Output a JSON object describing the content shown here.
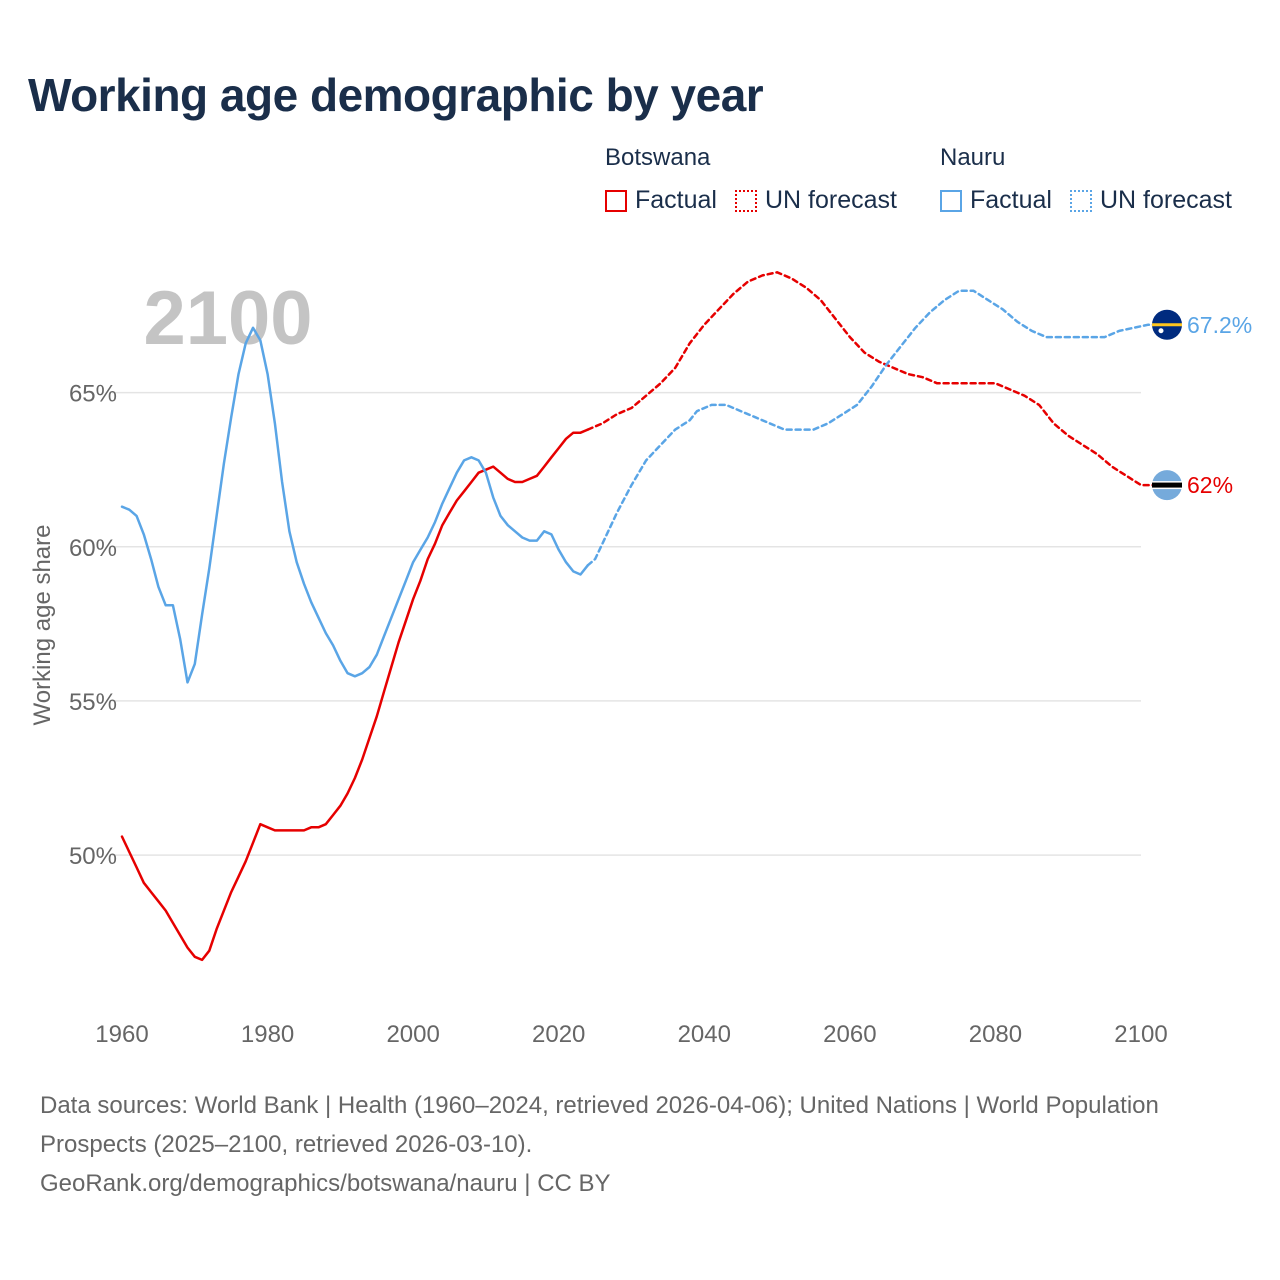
{
  "title": "Working age demographic by year",
  "legend": {
    "groups": [
      {
        "name": "Botswana",
        "factual_label": "Factual",
        "forecast_label": "UN forecast",
        "color": "#e60000"
      },
      {
        "name": "Nauru",
        "factual_label": "Factual",
        "forecast_label": "UN forecast",
        "color": "#5aa5e6"
      }
    ]
  },
  "footer": {
    "sources": "Data sources: World Bank | Health (1960–2024, retrieved 2026-04-06); United Nations | World Population Prospects (2025–2100, retrieved 2026-03-10).",
    "credit": "GeoRank.org/demographics/botswana/nauru | CC BY"
  },
  "chart_data": {
    "type": "line",
    "title": "Working age demographic by year",
    "year_watermark": "2100",
    "ylabel": "Working age share",
    "xlabel": "",
    "xlim": [
      1960,
      2100
    ],
    "ylim": [
      45.3,
      69.3
    ],
    "x_ticks": [
      1960,
      1980,
      2000,
      2020,
      2040,
      2060,
      2080,
      2100
    ],
    "y_ticks": [
      50,
      55,
      60,
      65
    ],
    "y_tick_labels": [
      "50%",
      "55%",
      "60%",
      "65%"
    ],
    "grid": true,
    "series": [
      {
        "name": "Botswana",
        "segment": "Factual",
        "color": "#e60000",
        "style": "solid",
        "points": [
          [
            1960,
            50.6
          ],
          [
            1961,
            50.1
          ],
          [
            1962,
            49.6
          ],
          [
            1963,
            49.1
          ],
          [
            1964,
            48.8
          ],
          [
            1965,
            48.5
          ],
          [
            1966,
            48.2
          ],
          [
            1967,
            47.8
          ],
          [
            1968,
            47.4
          ],
          [
            1969,
            47.0
          ],
          [
            1970,
            46.7
          ],
          [
            1971,
            46.6
          ],
          [
            1972,
            46.9
          ],
          [
            1973,
            47.6
          ],
          [
            1974,
            48.2
          ],
          [
            1975,
            48.8
          ],
          [
            1976,
            49.3
          ],
          [
            1977,
            49.8
          ],
          [
            1978,
            50.4
          ],
          [
            1979,
            51.0
          ],
          [
            1980,
            50.9
          ],
          [
            1981,
            50.8
          ],
          [
            1982,
            50.8
          ],
          [
            1983,
            50.8
          ],
          [
            1984,
            50.8
          ],
          [
            1985,
            50.8
          ],
          [
            1986,
            50.9
          ],
          [
            1987,
            50.9
          ],
          [
            1988,
            51.0
          ],
          [
            1989,
            51.3
          ],
          [
            1990,
            51.6
          ],
          [
            1991,
            52.0
          ],
          [
            1992,
            52.5
          ],
          [
            1993,
            53.1
          ],
          [
            1994,
            53.8
          ],
          [
            1995,
            54.5
          ],
          [
            1996,
            55.3
          ],
          [
            1997,
            56.1
          ],
          [
            1998,
            56.9
          ],
          [
            1999,
            57.6
          ],
          [
            2000,
            58.3
          ],
          [
            2001,
            58.9
          ],
          [
            2002,
            59.6
          ],
          [
            2003,
            60.1
          ],
          [
            2004,
            60.7
          ],
          [
            2005,
            61.1
          ],
          [
            2006,
            61.5
          ],
          [
            2007,
            61.8
          ],
          [
            2008,
            62.1
          ],
          [
            2009,
            62.4
          ],
          [
            2010,
            62.5
          ],
          [
            2011,
            62.6
          ],
          [
            2012,
            62.4
          ],
          [
            2013,
            62.2
          ],
          [
            2014,
            62.1
          ],
          [
            2015,
            62.1
          ],
          [
            2016,
            62.2
          ],
          [
            2017,
            62.3
          ],
          [
            2018,
            62.6
          ],
          [
            2019,
            62.9
          ],
          [
            2020,
            63.2
          ],
          [
            2021,
            63.5
          ],
          [
            2022,
            63.7
          ],
          [
            2023,
            63.7
          ],
          [
            2024,
            63.8
          ]
        ]
      },
      {
        "name": "Botswana",
        "segment": "UN forecast",
        "color": "#e60000",
        "style": "dashed",
        "points": [
          [
            2024,
            63.8
          ],
          [
            2025,
            63.9
          ],
          [
            2026,
            64.0
          ],
          [
            2028,
            64.3
          ],
          [
            2030,
            64.5
          ],
          [
            2032,
            64.9
          ],
          [
            2034,
            65.3
          ],
          [
            2036,
            65.8
          ],
          [
            2038,
            66.6
          ],
          [
            2040,
            67.2
          ],
          [
            2042,
            67.7
          ],
          [
            2044,
            68.2
          ],
          [
            2046,
            68.6
          ],
          [
            2048,
            68.8
          ],
          [
            2050,
            68.9
          ],
          [
            2052,
            68.7
          ],
          [
            2054,
            68.4
          ],
          [
            2056,
            68.0
          ],
          [
            2058,
            67.4
          ],
          [
            2060,
            66.8
          ],
          [
            2062,
            66.3
          ],
          [
            2064,
            66.0
          ],
          [
            2066,
            65.8
          ],
          [
            2068,
            65.6
          ],
          [
            2070,
            65.5
          ],
          [
            2072,
            65.3
          ],
          [
            2075,
            65.3
          ],
          [
            2080,
            65.3
          ],
          [
            2082,
            65.1
          ],
          [
            2084,
            64.9
          ],
          [
            2086,
            64.6
          ],
          [
            2088,
            64.0
          ],
          [
            2090,
            63.6
          ],
          [
            2092,
            63.3
          ],
          [
            2094,
            63.0
          ],
          [
            2096,
            62.6
          ],
          [
            2098,
            62.3
          ],
          [
            2100,
            62.0
          ],
          [
            2102,
            62.0
          ]
        ]
      },
      {
        "name": "Nauru",
        "segment": "Factual",
        "color": "#5aa5e6",
        "style": "solid",
        "points": [
          [
            1960,
            61.3
          ],
          [
            1961,
            61.2
          ],
          [
            1962,
            61.0
          ],
          [
            1963,
            60.4
          ],
          [
            1964,
            59.6
          ],
          [
            1965,
            58.7
          ],
          [
            1966,
            58.1
          ],
          [
            1967,
            58.1
          ],
          [
            1968,
            57.0
          ],
          [
            1969,
            55.6
          ],
          [
            1970,
            56.2
          ],
          [
            1971,
            57.8
          ],
          [
            1972,
            59.3
          ],
          [
            1973,
            61.0
          ],
          [
            1974,
            62.7
          ],
          [
            1975,
            64.2
          ],
          [
            1976,
            65.6
          ],
          [
            1977,
            66.6
          ],
          [
            1978,
            67.1
          ],
          [
            1979,
            66.7
          ],
          [
            1980,
            65.6
          ],
          [
            1981,
            64.0
          ],
          [
            1982,
            62.1
          ],
          [
            1983,
            60.5
          ],
          [
            1984,
            59.5
          ],
          [
            1985,
            58.8
          ],
          [
            1986,
            58.2
          ],
          [
            1987,
            57.7
          ],
          [
            1988,
            57.2
          ],
          [
            1989,
            56.8
          ],
          [
            1990,
            56.3
          ],
          [
            1991,
            55.9
          ],
          [
            1992,
            55.8
          ],
          [
            1993,
            55.9
          ],
          [
            1994,
            56.1
          ],
          [
            1995,
            56.5
          ],
          [
            1996,
            57.1
          ],
          [
            1997,
            57.7
          ],
          [
            1998,
            58.3
          ],
          [
            1999,
            58.9
          ],
          [
            2000,
            59.5
          ],
          [
            2001,
            59.9
          ],
          [
            2002,
            60.3
          ],
          [
            2003,
            60.8
          ],
          [
            2004,
            61.4
          ],
          [
            2005,
            61.9
          ],
          [
            2006,
            62.4
          ],
          [
            2007,
            62.8
          ],
          [
            2008,
            62.9
          ],
          [
            2009,
            62.8
          ],
          [
            2010,
            62.4
          ],
          [
            2011,
            61.6
          ],
          [
            2012,
            61.0
          ],
          [
            2013,
            60.7
          ],
          [
            2014,
            60.5
          ],
          [
            2015,
            60.3
          ],
          [
            2016,
            60.2
          ],
          [
            2017,
            60.2
          ],
          [
            2018,
            60.5
          ],
          [
            2019,
            60.4
          ],
          [
            2020,
            59.9
          ],
          [
            2021,
            59.5
          ],
          [
            2022,
            59.2
          ],
          [
            2023,
            59.1
          ],
          [
            2024,
            59.4
          ]
        ]
      },
      {
        "name": "Nauru",
        "segment": "UN forecast",
        "color": "#5aa5e6",
        "style": "dashed",
        "points": [
          [
            2024,
            59.4
          ],
          [
            2025,
            59.6
          ],
          [
            2026,
            60.1
          ],
          [
            2028,
            61.1
          ],
          [
            2030,
            62.0
          ],
          [
            2032,
            62.8
          ],
          [
            2034,
            63.3
          ],
          [
            2036,
            63.8
          ],
          [
            2038,
            64.1
          ],
          [
            2039,
            64.4
          ],
          [
            2041,
            64.6
          ],
          [
            2043,
            64.6
          ],
          [
            2045,
            64.4
          ],
          [
            2047,
            64.2
          ],
          [
            2049,
            64.0
          ],
          [
            2051,
            63.8
          ],
          [
            2055,
            63.8
          ],
          [
            2057,
            64.0
          ],
          [
            2059,
            64.3
          ],
          [
            2061,
            64.6
          ],
          [
            2063,
            65.2
          ],
          [
            2065,
            65.9
          ],
          [
            2067,
            66.5
          ],
          [
            2069,
            67.1
          ],
          [
            2071,
            67.6
          ],
          [
            2073,
            68.0
          ],
          [
            2075,
            68.3
          ],
          [
            2077,
            68.3
          ],
          [
            2079,
            68.0
          ],
          [
            2081,
            67.7
          ],
          [
            2083,
            67.3
          ],
          [
            2085,
            67.0
          ],
          [
            2087,
            66.8
          ],
          [
            2090,
            66.8
          ],
          [
            2095,
            66.8
          ],
          [
            2097,
            67.0
          ],
          [
            2099,
            67.1
          ],
          [
            2101,
            67.2
          ],
          [
            2105,
            67.2
          ]
        ]
      }
    ],
    "end_labels": [
      {
        "name": "Nauru",
        "value": 67.2,
        "label": "67.2%",
        "color": "#5aa5e6",
        "flag": "nauru-flag"
      },
      {
        "name": "Botswana",
        "value": 62.0,
        "label": "62%",
        "color": "#e60000",
        "flag": "botswana-flag"
      }
    ]
  }
}
